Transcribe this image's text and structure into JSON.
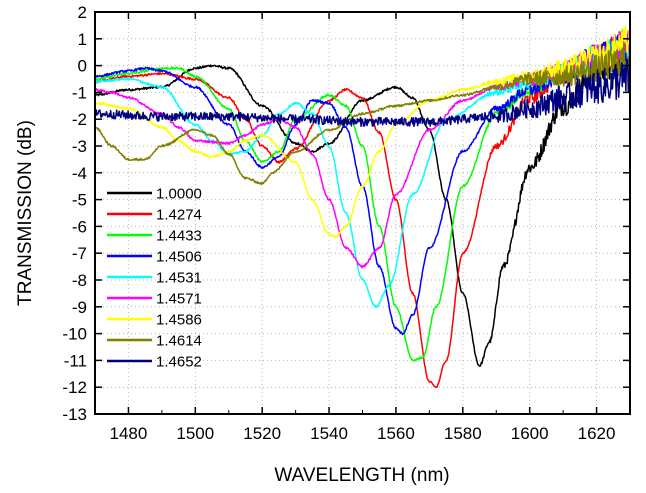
{
  "chart_data": {
    "type": "line",
    "title": "",
    "xlabel": "WAVELENGTH (nm)",
    "ylabel": "TRANSMISSION (dB)",
    "xlim": [
      1470,
      1630
    ],
    "ylim": [
      -13,
      2
    ],
    "xticks": [
      1480,
      1500,
      1520,
      1540,
      1560,
      1580,
      1600,
      1620
    ],
    "yticks": [
      -13,
      -12,
      -11,
      -10,
      -9,
      -8,
      -7,
      -6,
      -5,
      -4,
      -3,
      -2,
      -1,
      0,
      1,
      2
    ],
    "grid": true,
    "legend_position": "lower-left",
    "series": [
      {
        "name": "1.0000",
        "color": "#000000",
        "x": [
          1470,
          1480,
          1490,
          1500,
          1505,
          1510,
          1520,
          1530,
          1535,
          1540,
          1550,
          1560,
          1565,
          1570,
          1575,
          1580,
          1585,
          1588,
          1592,
          1600,
          1610,
          1620,
          1630
        ],
        "y": [
          -1.1,
          -0.9,
          -0.8,
          -0.1,
          0.0,
          -0.1,
          -1.5,
          -2.9,
          -3.2,
          -2.9,
          -1.3,
          -0.8,
          -1.2,
          -2.4,
          -5.0,
          -8.5,
          -11.2,
          -10.3,
          -7.5,
          -3.8,
          -1.5,
          -0.2,
          0.5
        ]
      },
      {
        "name": "1.4274",
        "color": "#ff0000",
        "x": [
          1470,
          1480,
          1490,
          1500,
          1510,
          1515,
          1520,
          1525,
          1530,
          1540,
          1545,
          1550,
          1555,
          1560,
          1565,
          1570,
          1572,
          1575,
          1580,
          1590,
          1600,
          1610,
          1620,
          1630
        ],
        "y": [
          -0.6,
          -0.4,
          -0.3,
          -0.5,
          -1.2,
          -2.0,
          -3.0,
          -3.6,
          -3.1,
          -1.3,
          -0.9,
          -1.2,
          -2.5,
          -5.0,
          -8.5,
          -11.8,
          -12.0,
          -11.0,
          -7.0,
          -3.0,
          -1.2,
          -0.3,
          0.3,
          0.8
        ]
      },
      {
        "name": "1.4433",
        "color": "#00ff00",
        "x": [
          1470,
          1480,
          1490,
          1495,
          1500,
          1510,
          1515,
          1520,
          1525,
          1530,
          1540,
          1545,
          1550,
          1555,
          1560,
          1565,
          1568,
          1572,
          1580,
          1590,
          1600,
          1610,
          1620,
          1630
        ],
        "y": [
          -0.5,
          -0.3,
          -0.1,
          -0.1,
          -0.4,
          -1.6,
          -2.8,
          -3.6,
          -3.2,
          -2.0,
          -1.1,
          -1.5,
          -3.0,
          -6.0,
          -9.0,
          -11.0,
          -10.9,
          -9.0,
          -4.5,
          -1.8,
          -0.9,
          -0.3,
          0.3,
          0.8
        ]
      },
      {
        "name": "1.4506",
        "color": "#0000ff",
        "x": [
          1470,
          1480,
          1485,
          1490,
          1500,
          1510,
          1515,
          1520,
          1525,
          1530,
          1535,
          1540,
          1545,
          1550,
          1555,
          1560,
          1562,
          1565,
          1570,
          1580,
          1590,
          1600,
          1610,
          1620,
          1630
        ],
        "y": [
          -0.4,
          -0.2,
          -0.1,
          -0.2,
          -0.8,
          -2.2,
          -3.2,
          -3.8,
          -3.4,
          -2.2,
          -1.3,
          -1.4,
          -2.3,
          -4.5,
          -7.5,
          -9.8,
          -10.0,
          -9.3,
          -6.8,
          -3.2,
          -1.6,
          -0.9,
          -0.3,
          0.3,
          0.8
        ]
      },
      {
        "name": "1.4531",
        "color": "#00ffff",
        "x": [
          1470,
          1480,
          1490,
          1500,
          1505,
          1510,
          1515,
          1520,
          1525,
          1530,
          1535,
          1540,
          1545,
          1550,
          1554,
          1558,
          1565,
          1575,
          1590,
          1600,
          1610,
          1620,
          1630
        ],
        "y": [
          -0.6,
          -0.5,
          -0.8,
          -2.2,
          -2.8,
          -3.3,
          -3.2,
          -2.6,
          -1.8,
          -1.4,
          -1.8,
          -3.0,
          -5.5,
          -8.0,
          -9.0,
          -8.2,
          -4.8,
          -2.0,
          -1.0,
          -0.6,
          -0.2,
          0.3,
          0.8
        ]
      },
      {
        "name": "1.4571",
        "color": "#ff00ff",
        "x": [
          1470,
          1475,
          1480,
          1490,
          1495,
          1500,
          1510,
          1515,
          1520,
          1525,
          1530,
          1535,
          1540,
          1545,
          1550,
          1555,
          1560,
          1570,
          1580,
          1590,
          1600,
          1610,
          1620,
          1630
        ],
        "y": [
          -0.9,
          -1.0,
          -1.2,
          -1.8,
          -2.3,
          -2.8,
          -2.9,
          -2.6,
          -2.2,
          -2.0,
          -2.3,
          -3.3,
          -5.0,
          -6.8,
          -7.5,
          -6.8,
          -4.8,
          -2.4,
          -1.3,
          -0.8,
          -0.5,
          -0.2,
          0.3,
          0.8
        ]
      },
      {
        "name": "1.4586",
        "color": "#ffff00",
        "x": [
          1470,
          1480,
          1490,
          1495,
          1500,
          1505,
          1510,
          1515,
          1520,
          1530,
          1535,
          1540,
          1542,
          1545,
          1550,
          1555,
          1560,
          1570,
          1580,
          1590,
          1600,
          1610,
          1620,
          1630
        ],
        "y": [
          -1.4,
          -1.6,
          -2.3,
          -2.8,
          -3.2,
          -3.4,
          -3.2,
          -2.8,
          -2.6,
          -3.6,
          -5.0,
          -6.3,
          -6.4,
          -6.0,
          -4.5,
          -3.2,
          -2.2,
          -1.3,
          -0.9,
          -0.6,
          -0.4,
          -0.1,
          0.3,
          0.9
        ]
      },
      {
        "name": "1.4614",
        "color": "#808000",
        "x": [
          1470,
          1475,
          1480,
          1485,
          1490,
          1500,
          1505,
          1510,
          1515,
          1520,
          1523,
          1530,
          1540,
          1550,
          1560,
          1570,
          1580,
          1590,
          1600,
          1610,
          1620,
          1630
        ],
        "y": [
          -2.3,
          -3.0,
          -3.5,
          -3.5,
          -3.0,
          -2.4,
          -2.6,
          -3.3,
          -4.2,
          -4.4,
          -4.0,
          -3.2,
          -2.4,
          -1.8,
          -1.5,
          -1.3,
          -1.1,
          -0.8,
          -0.5,
          -0.4,
          -0.1,
          0.3
        ]
      },
      {
        "name": "1.4652",
        "color": "#000080",
        "x": [
          1470,
          1490,
          1510,
          1530,
          1550,
          1570,
          1590,
          1600,
          1610,
          1620,
          1630
        ],
        "y": [
          -1.8,
          -1.9,
          -1.9,
          -2.0,
          -2.1,
          -2.1,
          -1.9,
          -1.6,
          -1.2,
          -0.8,
          -0.5
        ]
      }
    ]
  }
}
